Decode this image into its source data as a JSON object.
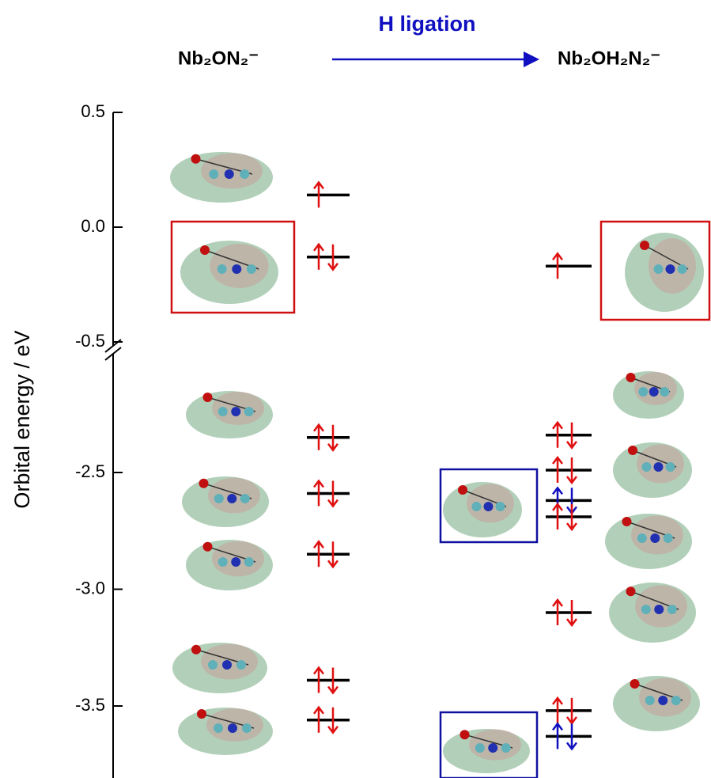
{
  "chart_data": {
    "type": "level",
    "title": "H ligation",
    "y_label": "Orbital energy / eV",
    "y_segments": [
      {
        "ylim": [
          -0.5,
          0.5
        ],
        "yticks": [
          0.5,
          {
            "value": 0,
            "label": "0.0"
          },
          -0.5
        ]
      },
      {
        "ylim": [
          -3.8,
          -2.0
        ],
        "yticks": [
          -2.5,
          {
            "value": -3,
            "label": "-3.0"
          },
          -3.5
        ]
      }
    ],
    "series": [
      {
        "name": "Nb₂ON₂⁻",
        "color": "#000000",
        "values": [
          0.14,
          -0.13,
          -2.35,
          -2.59,
          -2.85,
          -3.39,
          -3.56
        ],
        "spins": [
          1,
          2,
          2,
          2,
          2,
          2,
          2
        ],
        "arrow_colors": [
          "#e01010",
          "#e01010",
          "#e01010",
          "#e01010",
          "#e01010",
          "#e01010",
          "#e01010"
        ]
      },
      {
        "name": "Nb₂OH₂N₂⁻",
        "color": "#000000",
        "values": [
          -0.17,
          -2.34,
          -2.49,
          -2.62,
          -2.69,
          -3.1,
          -3.52,
          -3.63
        ],
        "spins": [
          1,
          2,
          2,
          2,
          2,
          2,
          2,
          2
        ],
        "arrow_colors": [
          "#e01010",
          "#e01010",
          "#e01010",
          "#1010c0",
          "#e01010",
          "#e01010",
          "#e01010",
          "#1010c0"
        ]
      }
    ]
  }
}
